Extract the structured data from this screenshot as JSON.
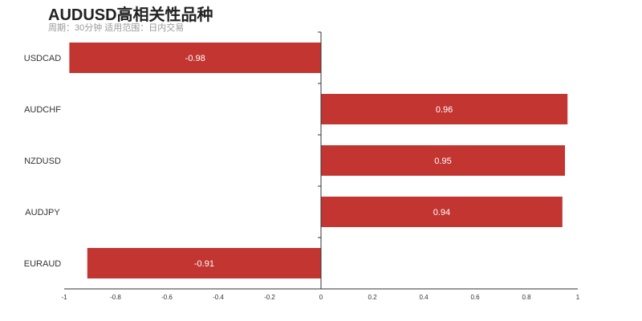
{
  "chart_data": {
    "type": "bar",
    "orientation": "horizontal",
    "title": "AUDUSD高相关性品种",
    "subtitle": "周期：30分钟 适用范围：日内交易",
    "categories": [
      "USDCAD",
      "AUDCHF",
      "NZDUSD",
      "AUDJPY",
      "EURAUD"
    ],
    "values": [
      -0.98,
      0.96,
      0.95,
      0.94,
      -0.91
    ],
    "xlim": [
      -1,
      1
    ],
    "xticks": [
      "-1",
      "-0.8",
      "-0.6",
      "-0.4",
      "-0.2",
      "0",
      "0.2",
      "0.4",
      "0.6",
      "0.8",
      "1"
    ],
    "grid": false,
    "bar_color": "#c23531",
    "label_color": "#ffffff"
  }
}
